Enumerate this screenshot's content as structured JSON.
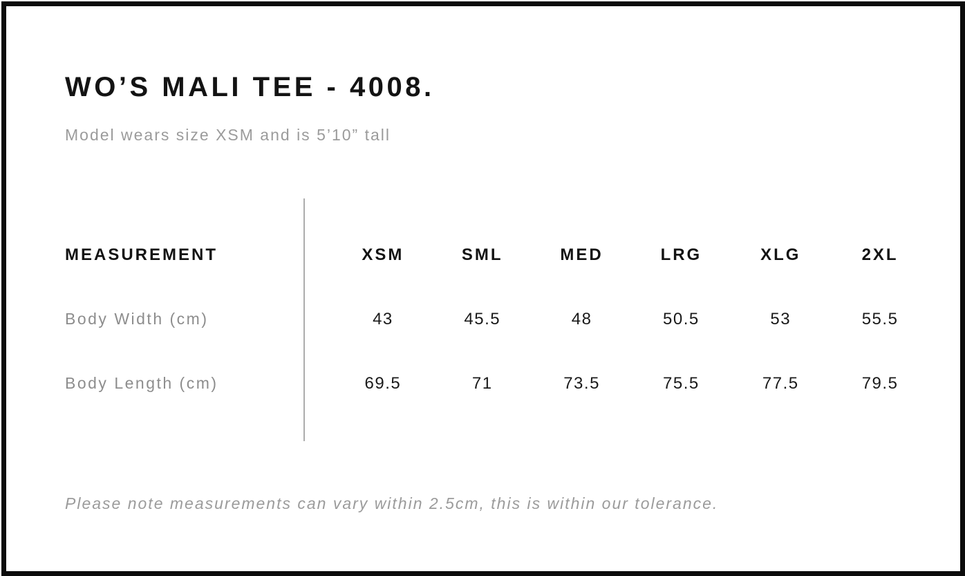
{
  "product": {
    "title": "WO’S MALI TEE - 4008.",
    "subtitle": "Model wears size XSM and is 5’10” tall"
  },
  "size_chart": {
    "measurement_header": "MEASUREMENT",
    "sizes": [
      "XSM",
      "SML",
      "MED",
      "LRG",
      "XLG",
      "2XL"
    ],
    "rows": [
      {
        "label": "Body Width (cm)",
        "values": [
          "43",
          "45.5",
          "48",
          "50.5",
          "53",
          "55.5"
        ]
      },
      {
        "label": "Body Length (cm)",
        "values": [
          "69.5",
          "71",
          "73.5",
          "75.5",
          "77.5",
          "79.5"
        ]
      }
    ]
  },
  "footer": {
    "note": "Please note measurements can vary within 2.5cm, this is within our tolerance."
  },
  "chart_data": {
    "type": "table",
    "title": "WO’S MALI TEE - 4008.",
    "columns": [
      "MEASUREMENT",
      "XSM",
      "SML",
      "MED",
      "LRG",
      "XLG",
      "2XL"
    ],
    "rows": [
      [
        "Body Width (cm)",
        43,
        45.5,
        48,
        50.5,
        53,
        55.5
      ],
      [
        "Body Length (cm)",
        69.5,
        71,
        73.5,
        75.5,
        77.5,
        79.5
      ]
    ]
  },
  "colors": {
    "text_black": "#131313",
    "text_gray": "#9b9b9b",
    "label_gray": "#8d8d8d",
    "divider_gray": "#acacac",
    "border_black": "#0c0c0c",
    "background": "#ffffff"
  }
}
